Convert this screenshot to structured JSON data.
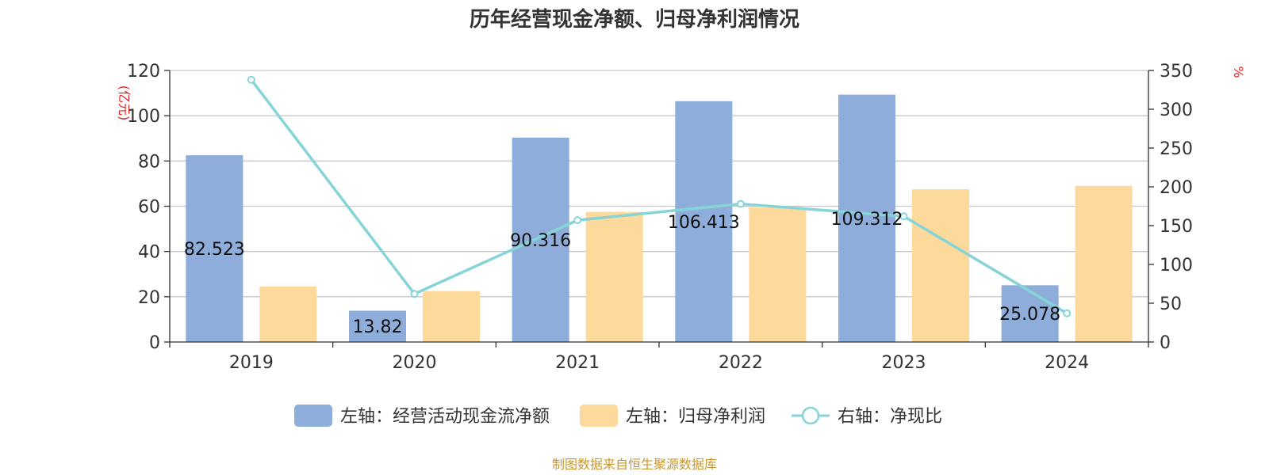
{
  "chart_data": {
    "type": "bar",
    "title": "历年经营现金净额、归母净利润情况",
    "categories": [
      "2019",
      "2020",
      "2021",
      "2022",
      "2023",
      "2024"
    ],
    "y_left": {
      "unit_label": "(亿元)",
      "ylim": [
        0,
        120
      ],
      "ticks": [
        "0",
        "20",
        "40",
        "60",
        "80",
        "100",
        "120"
      ]
    },
    "y_right": {
      "unit_label": "%",
      "ylim": [
        0,
        350
      ],
      "ticks": [
        "0",
        "50",
        "100",
        "150",
        "200",
        "250",
        "300",
        "350"
      ]
    },
    "series": [
      {
        "name": "左轴：经营活动现金流净额",
        "type": "bar",
        "axis": "left",
        "color": "#8eadda",
        "values": [
          82.523,
          13.82,
          90.316,
          106.413,
          109.312,
          25.078
        ],
        "labels": [
          "82.523",
          "13.82",
          "90.316",
          "106.413",
          "109.312",
          "25.078"
        ]
      },
      {
        "name": "左轴：归母净利润",
        "type": "bar",
        "axis": "left",
        "color": "#fdd99b",
        "values": [
          24.5,
          22.5,
          57.5,
          59.5,
          67.5,
          69.0
        ]
      },
      {
        "name": "右轴：净现比",
        "type": "line",
        "axis": "right",
        "color": "#86d4d8",
        "values": [
          338,
          62,
          157,
          178,
          162,
          37
        ]
      }
    ],
    "grid": true,
    "legend_position": "bottom"
  },
  "source_text": "制图数据来自恒生聚源数据库"
}
